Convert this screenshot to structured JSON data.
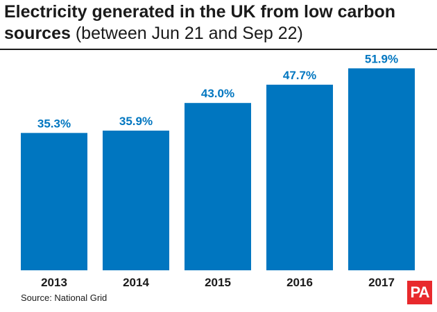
{
  "title": {
    "bold": "Electricity generated in the UK from low carbon sources",
    "light": "(between Jun 21 and Sep 22)"
  },
  "source": "Source: National Grid",
  "logo_text": "PA",
  "colors": {
    "bar": "#0076c0",
    "value_label": "#0076c0",
    "text": "#1a1a1a",
    "logo_bg": "#e8292c"
  },
  "chart_data": {
    "type": "bar",
    "categories": [
      "2013",
      "2014",
      "2015",
      "2016",
      "2017"
    ],
    "values": [
      35.3,
      35.9,
      43.0,
      47.7,
      51.9
    ],
    "value_labels": [
      "35.3%",
      "35.9%",
      "43.0%",
      "47.7%",
      "51.9%"
    ],
    "ylim": [
      0,
      55
    ],
    "grid": false,
    "legend": "none"
  }
}
